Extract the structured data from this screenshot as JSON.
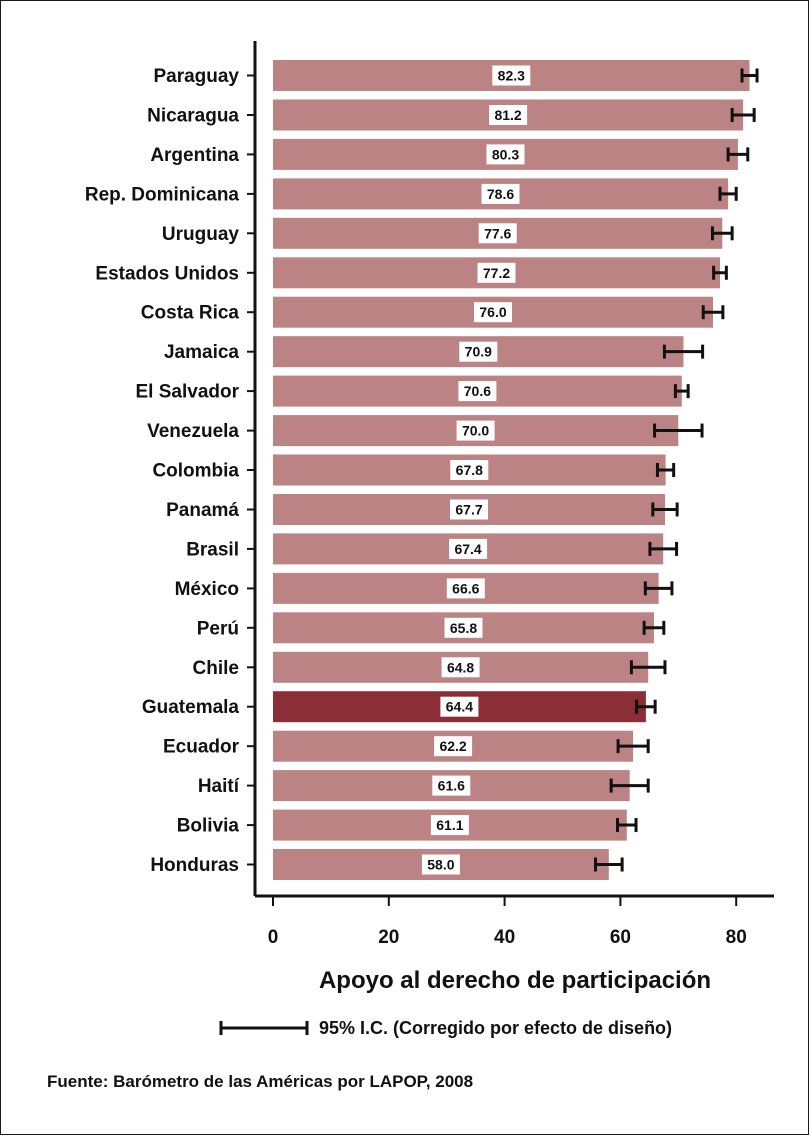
{
  "chart_data": {
    "type": "bar",
    "orientation": "horizontal",
    "categories": [
      "Paraguay",
      "Nicaragua",
      "Argentina",
      "Rep. Dominicana",
      "Uruguay",
      "Estados Unidos",
      "Costa Rica",
      "Jamaica",
      "El Salvador",
      "Venezuela",
      "Colombia",
      "Panamá",
      "Brasil",
      "México",
      "Perú",
      "Chile",
      "Guatemala",
      "Ecuador",
      "Haití",
      "Bolivia",
      "Honduras"
    ],
    "values": [
      82.3,
      81.2,
      80.3,
      78.6,
      77.6,
      77.2,
      76.0,
      70.9,
      70.6,
      70.0,
      67.8,
      67.7,
      67.4,
      66.6,
      65.8,
      64.8,
      64.4,
      62.2,
      61.6,
      61.1,
      58.0
    ],
    "value_labels": [
      "82.3",
      "81.2",
      "80.3",
      "78.6",
      "77.6",
      "77.2",
      "76.0",
      "70.9",
      "70.6",
      "70.0",
      "67.8",
      "67.7",
      "67.4",
      "66.6",
      "65.8",
      "64.8",
      "64.4",
      "62.2",
      "61.6",
      "61.1",
      "58.0"
    ],
    "ci_low": [
      81.0,
      79.3,
      78.6,
      77.2,
      75.9,
      76.1,
      74.3,
      67.6,
      69.5,
      65.9,
      66.4,
      65.6,
      65.1,
      64.3,
      64.1,
      61.9,
      62.8,
      59.6,
      58.4,
      59.5,
      55.7
    ],
    "ci_high": [
      83.6,
      83.1,
      82.0,
      80.0,
      79.3,
      78.3,
      77.7,
      74.2,
      71.7,
      74.1,
      69.2,
      69.8,
      69.7,
      68.9,
      67.5,
      67.7,
      66.0,
      64.8,
      64.8,
      62.7,
      60.3
    ],
    "highlight": "Guatemala",
    "xlabel": "Apoyo al derecho de participación",
    "xticks": [
      0,
      20,
      40,
      60,
      80
    ],
    "xlim": [
      0,
      85
    ],
    "legend_label": "95% I.C. (Corregido por efecto de diseño)",
    "source": "Fuente: Barómetro de las Américas por LAPOP, 2008",
    "grid": false,
    "colors": {
      "bar": "#bb8383",
      "highlight": "#8b2e36",
      "error": "#111111"
    }
  }
}
